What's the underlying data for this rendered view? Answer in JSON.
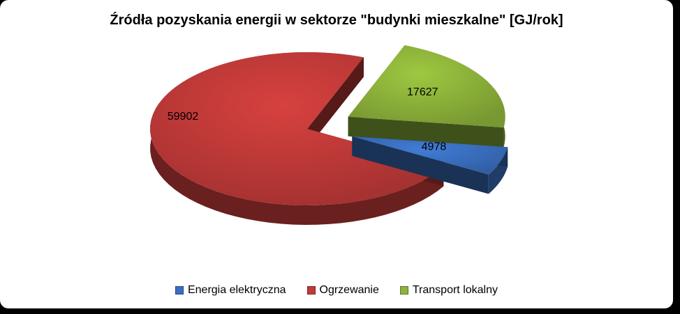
{
  "chart_data": {
    "type": "pie",
    "title": "Źródła pozyskania energii w sektorze \"budynki mieszkalne\" [GJ/rok]",
    "categories": [
      "Energia elektryczna",
      "Ogrzewanie",
      "Transport lokalny"
    ],
    "values": [
      4978,
      59902,
      17627
    ],
    "data_labels": [
      "4978",
      "59902",
      "17627"
    ],
    "colors": [
      "#3a6fbf",
      "#c03a38",
      "#8db33a"
    ],
    "legend_position": "bottom",
    "style": "3d-exploded"
  }
}
